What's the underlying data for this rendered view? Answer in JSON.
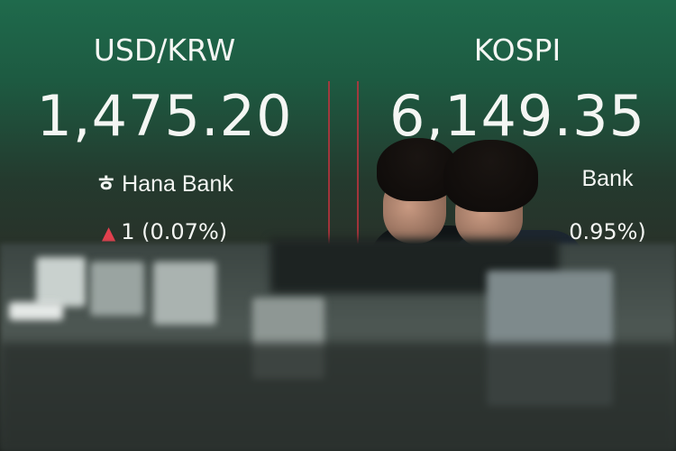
{
  "left_panel": {
    "label": "USD/KRW",
    "value": "1,475.20",
    "bank": "Hana Bank",
    "change": "1 (0.07%)",
    "direction": "up-triangle-icon"
  },
  "right_panel": {
    "label": "KOSPI",
    "value": "6,149.35",
    "bank": "Bank",
    "change": "0.95%)"
  },
  "colors": {
    "up": "#e2404e",
    "board_top": "#1f6a4c",
    "divider": "#c2333f"
  }
}
